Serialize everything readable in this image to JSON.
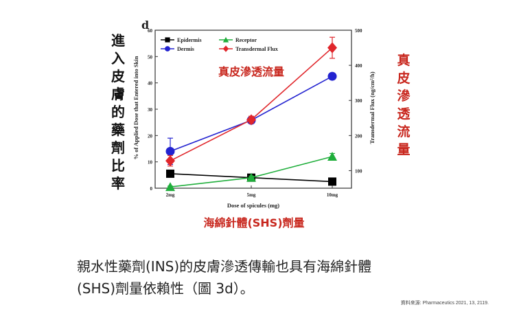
{
  "chart_data": {
    "type": "line",
    "panel_label": "d",
    "x_categories": [
      "2mg",
      "5mg",
      "10mg"
    ],
    "xlabel": "Dose of spicules (mg)",
    "ylabel_left": "% of Applied Dose that Entered into Skin",
    "ylabel_right": "Transdermal Flux (ng/cm²/h)",
    "y_left_ticks": [
      "0",
      "10",
      "20",
      "30",
      "40",
      "50",
      "60"
    ],
    "y_left_range": [
      0,
      60
    ],
    "y_right_ticks": [
      "100",
      "200",
      "300",
      "400",
      "500"
    ],
    "y_right_range": [
      50,
      500
    ],
    "legend_placement": "top-left",
    "series": [
      {
        "name": "Epidermis",
        "axis": "left",
        "color": "#000000",
        "marker": "square",
        "values": [
          5.5,
          4.0,
          2.5
        ],
        "errors": [
          1.0,
          0.5,
          0.3
        ]
      },
      {
        "name": "Receptor",
        "axis": "left",
        "color": "#1fae3b",
        "marker": "triangle",
        "values": [
          0.5,
          4.0,
          12.0
        ],
        "errors": [
          0.3,
          0.6,
          1.2
        ]
      },
      {
        "name": "Dermis",
        "axis": "left",
        "color": "#2323d0",
        "marker": "circle",
        "values": [
          14.0,
          25.8,
          42.5
        ],
        "errors": [
          5.0,
          0.8,
          1.2
        ]
      },
      {
        "name": "Transdermal Flux",
        "axis": "right",
        "color": "#e0262b",
        "marker": "diamond",
        "values": [
          128,
          245,
          450
        ],
        "errors": [
          15,
          10,
          30
        ]
      }
    ]
  },
  "annotations": {
    "left_label": "進入皮膚的藥劑比率",
    "right_label": "真皮滲透流量",
    "inner_label": "真皮滲透流量",
    "x_label_cn": "海綿針體(SHS)劑量"
  },
  "caption": {
    "line1": "親水性藥劑(INS)的皮膚滲透傳輸也具有海綿針體",
    "line2": "(SHS)劑量依賴性（圖 3d）。"
  },
  "source": "資料來源: Pharmaceutics 2021, 13, 2119.",
  "colors": {
    "accent_red": "#c8271e",
    "axis": "#333333"
  }
}
